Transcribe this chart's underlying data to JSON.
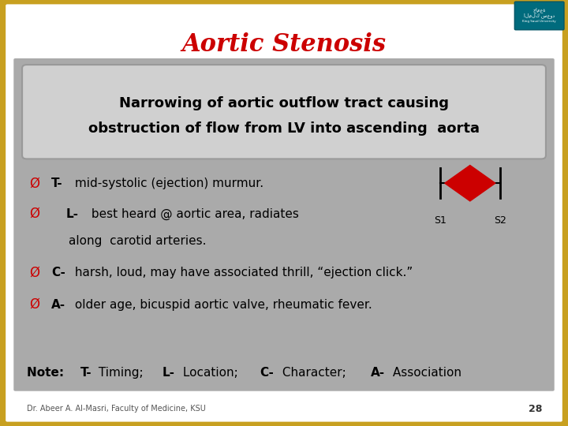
{
  "title": "Aortic Stenosis",
  "title_color": "#CC0000",
  "title_fontsize": 22,
  "bg_outer": "#C8A020",
  "bg_slide": "#FFFFFF",
  "bg_inner_color": "#AAAAAA",
  "definition_box_bg": "#D0D0D0",
  "definition_text_line1": "Narrowing of aortic outflow tract causing",
  "definition_text_line2": "obstruction of flow from LV into ascending  aorta",
  "bullet_symbol": "Ø",
  "bullet_symbol_color": "#CC0000",
  "bullets": [
    {
      "bold": "T-",
      "rest": " mid-systolic (ejection) murmur.",
      "indent": false
    },
    {
      "bold": "L-",
      "rest": " best heard @ aortic area, radiates",
      "indent": true
    },
    {
      "bold": "C-",
      "rest": " harsh, loud, may have associated thrill, “ejection click.”",
      "indent": false
    },
    {
      "bold": "A-",
      "rest": " older age, bicuspid aortic valve, rheumatic fever.",
      "indent": false
    }
  ],
  "l_bullet_line2": "along  carotid arteries.",
  "diamond_color": "#CC0000",
  "s1_label": "S1",
  "s2_label": "S2",
  "note_parts": [
    {
      "text": "Note: ",
      "bold": true
    },
    {
      "text": "T-",
      "bold": true
    },
    {
      "text": " Timing; ",
      "bold": false
    },
    {
      "text": "L-",
      "bold": true
    },
    {
      "text": " Location; ",
      "bold": false
    },
    {
      "text": "C-",
      "bold": true
    },
    {
      "text": " Character; ",
      "bold": false
    },
    {
      "text": "A-",
      "bold": true
    },
    {
      "text": " Association",
      "bold": false
    }
  ],
  "footer_text": "Dr. Abeer A. Al-Masri, Faculty of Medicine, KSU",
  "page_number": "28",
  "bullet_fontsize": 11,
  "note_fontsize": 11,
  "def_fontsize": 13,
  "footer_fontsize": 7
}
